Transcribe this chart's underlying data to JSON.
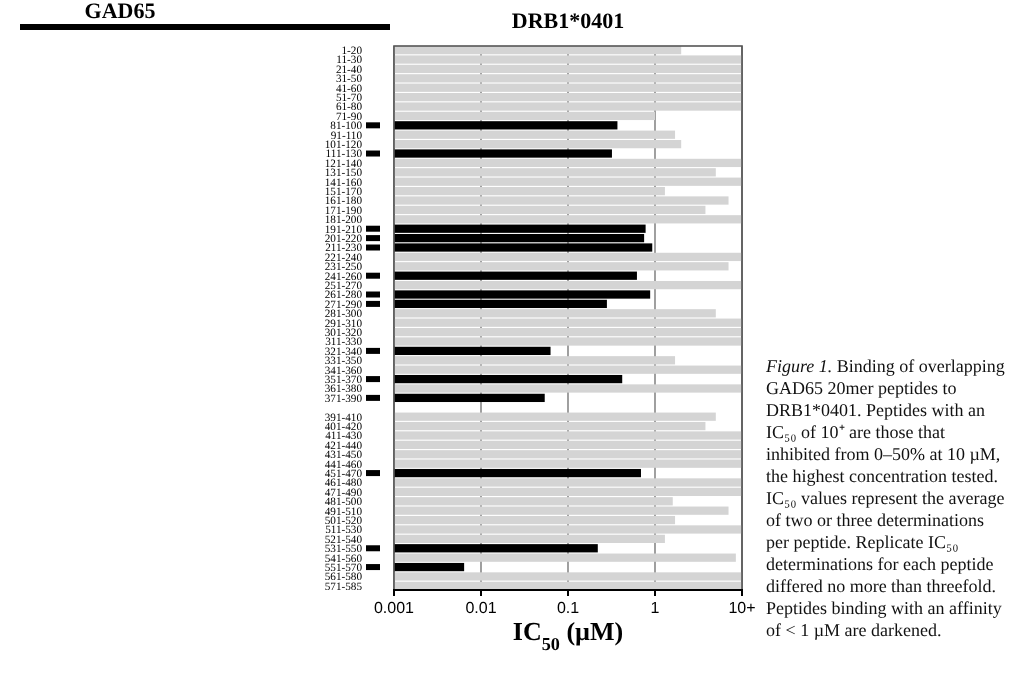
{
  "chart_data": {
    "type": "bar",
    "orientation": "horizontal",
    "log": "x",
    "title": "DRB1*0401",
    "xlabel": "IC$_{50}$ (µM)",
    "annotations": [
      "GAD65",
      "Figure 1.",
      "Binding of overlapping GAD65 20mer peptides to DRB1*0401. Peptides with an IC₅₀ of 10⁺ are those that inhibited from 0–50% at 10 µM, the highest concentration tested. IC₅₀ values represent the average of two or three determinations per peptide. Replicate IC₅₀ determinations for each peptide differed no more than threefold. Peptides binding with an affinity of < 1 µM are darkened."
    ],
    "categories": [
      "1-20",
      "11-30",
      "21-40",
      "31-50",
      "41-60",
      "51-70",
      "61-80",
      "71-90",
      "81-100",
      "91-110",
      "101-120",
      "111-130",
      "121-140",
      "131-150",
      "141-160",
      "151-170",
      "161-180",
      "171-190",
      "181-200",
      "191-210",
      "201-220",
      "211-230",
      "221-240",
      "231-250",
      "241-260",
      "251-270",
      "261-280",
      "271-290",
      "281-300",
      "291-310",
      "301-320",
      "311-330",
      "321-340",
      "331-350",
      "341-360",
      "351-370",
      "361-380",
      "371-390",
      null,
      "391-410",
      "401-420",
      "411-430",
      "421-440",
      "431-450",
      "441-460",
      "451-470",
      "461-480",
      "471-490",
      "481-500",
      "491-510",
      "501-520",
      "511-530",
      "521-540",
      "531-550",
      "541-560",
      "551-570",
      "561-580",
      "571-585"
    ],
    "values": [
      2,
      10,
      10,
      10,
      10,
      10,
      10,
      1,
      0.37,
      1.7,
      2,
      0.32,
      10,
      5,
      10,
      1.3,
      7,
      3.8,
      10,
      0.78,
      0.75,
      0.93,
      10,
      7,
      0.62,
      10,
      0.88,
      0.28,
      5,
      10,
      10,
      10,
      0.063,
      1.7,
      10,
      0.42,
      10,
      0.054,
      null,
      5,
      3.8,
      10,
      10,
      10,
      10,
      0.69,
      10,
      10,
      1.6,
      7,
      1.7,
      10,
      1.3,
      0.22,
      8.5,
      0.0064,
      10,
      10
    ],
    "colors": [
      "#d4d4d4",
      "#d4d4d4",
      "#d4d4d4",
      "#d4d4d4",
      "#d4d4d4",
      "#d4d4d4",
      "#d4d4d4",
      "#d4d4d4",
      "#000000",
      "#d4d4d4",
      "#d4d4d4",
      "#000000",
      "#d4d4d4",
      "#d4d4d4",
      "#d4d4d4",
      "#d4d4d4",
      "#d4d4d4",
      "#d4d4d4",
      "#d4d4d4",
      "#000000",
      "#000000",
      "#000000",
      "#d4d4d4",
      "#d4d4d4",
      "#000000",
      "#d4d4d4",
      "#000000",
      "#000000",
      "#d4d4d4",
      "#d4d4d4",
      "#d4d4d4",
      "#d4d4d4",
      "#000000",
      "#d4d4d4",
      "#d4d4d4",
      "#000000",
      "#d4d4d4",
      "#000000",
      "#d4d4d4",
      "#d4d4d4",
      "#d4d4d4",
      "#d4d4d4",
      "#d4d4d4",
      "#d4d4d4",
      "#d4d4d4",
      "#000000",
      "#d4d4d4",
      "#d4d4d4",
      "#d4d4d4",
      "#d4d4d4",
      "#d4d4d4",
      "#d4d4d4",
      "#d4d4d4",
      "#000000",
      "#d4d4d4",
      "#000000",
      "#d4d4d4",
      "#d4d4d4"
    ],
    "xlim": [
      0.001,
      10
    ],
    "xticks": [
      0.001,
      0.01,
      0.1,
      1,
      {
        "value": 10,
        "label": "10+"
      }
    ],
    "grid": "x"
  }
}
